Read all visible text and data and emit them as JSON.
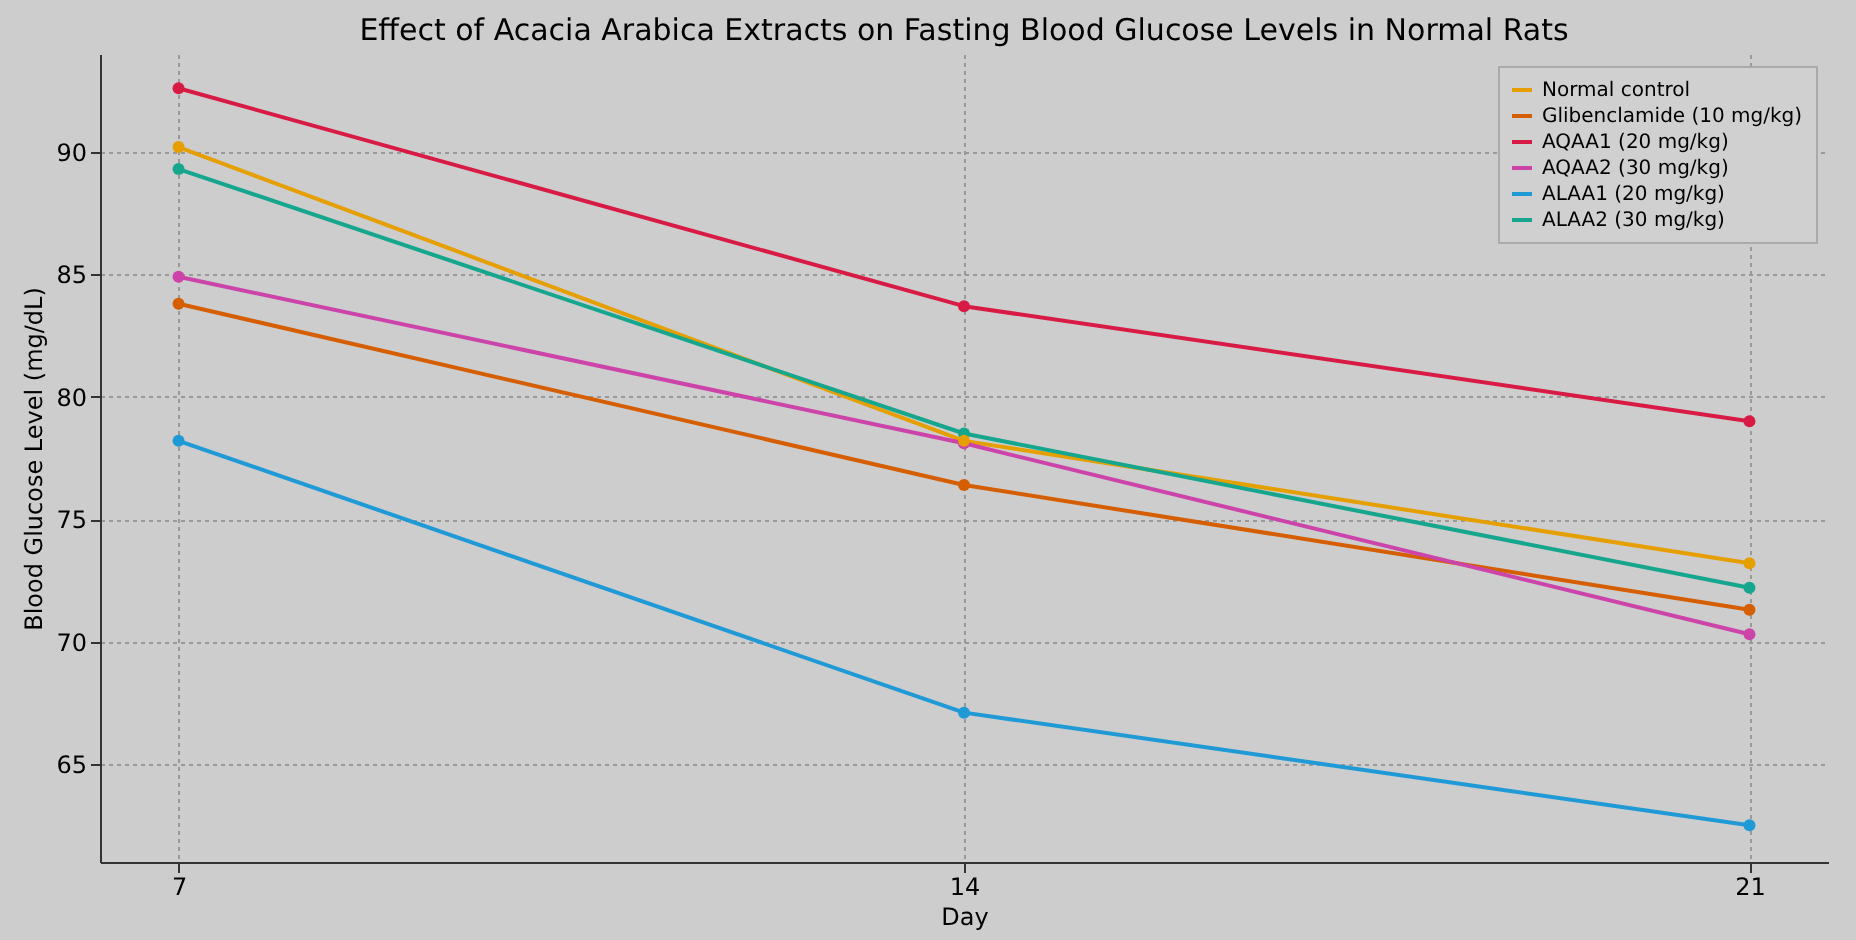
{
  "chart_data": {
    "type": "line",
    "title": "Effect of Acacia Arabica Extracts on Fasting Blood Glucose Levels in Normal Rats",
    "xlabel": "Day",
    "ylabel": "Blood Glucose Level (mg/dL)",
    "x": [
      7,
      14,
      21
    ],
    "xlim": [
      6.3,
      21.7
    ],
    "xticks": [
      7,
      14,
      21
    ],
    "ylim": [
      61,
      94
    ],
    "yticks": [
      65,
      70,
      75,
      80,
      85,
      90
    ],
    "grid": true,
    "legend": "top right",
    "marker": "circle",
    "line_style": "solid",
    "series": [
      {
        "name": "Normal control",
        "color": "#e69f00",
        "values": [
          90.2,
          78.2,
          73.2
        ]
      },
      {
        "name": "Glibenclamide (10 mg/kg)",
        "color": "#d55e00",
        "values": [
          83.8,
          76.4,
          71.3
        ]
      },
      {
        "name": "AQAA1 (20 mg/kg)",
        "color": "#d81b45",
        "values": [
          92.6,
          83.7,
          79.0
        ]
      },
      {
        "name": "AQAA2 (30 mg/kg)",
        "color": "#cc44aa",
        "values": [
          84.9,
          78.1,
          70.3
        ]
      },
      {
        "name": "ALAA1 (20 mg/kg)",
        "color": "#1f9ad6",
        "values": [
          78.2,
          67.1,
          62.5
        ]
      },
      {
        "name": "ALAA2 (30 mg/kg)",
        "color": "#16a68e",
        "values": [
          89.3,
          78.5,
          72.2
        ]
      }
    ]
  }
}
